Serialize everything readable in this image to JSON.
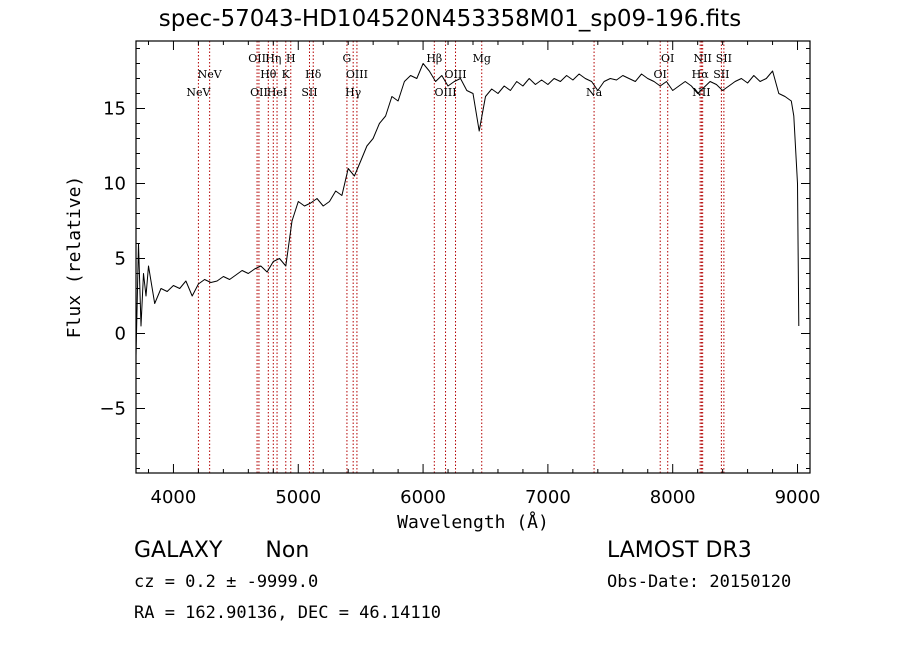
{
  "title": "spec-57043-HD104520N453358M01_sp09-196.fits",
  "info": {
    "object_class": "GALAXY",
    "subclass": "Non",
    "survey": "LAMOST DR3",
    "redshift_text": "cz = 0.2 ± -9999.0",
    "obs_date_text": "Obs-Date: 20150120",
    "coords_text": "RA = 162.90136, DEC =  46.14110"
  },
  "colors": {
    "spectrum": "#000000",
    "lines": "#b30000",
    "axes": "#000000"
  },
  "chart_data": {
    "type": "line",
    "xlabel": "Wavelength (Å)",
    "ylabel": "Flux (relative)",
    "xlim": [
      3700,
      9100
    ],
    "ylim": [
      -9.3,
      19.5
    ],
    "xticks": [
      4000,
      5000,
      6000,
      7000,
      8000,
      9000
    ],
    "yticks": [
      -5,
      0,
      5,
      10,
      15
    ],
    "series": [
      {
        "name": "flux",
        "x": [
          3700,
          3720,
          3740,
          3760,
          3780,
          3800,
          3850,
          3900,
          3950,
          4000,
          4050,
          4100,
          4150,
          4200,
          4250,
          4300,
          4350,
          4400,
          4450,
          4500,
          4550,
          4600,
          4650,
          4700,
          4750,
          4800,
          4850,
          4900,
          4950,
          5000,
          5050,
          5100,
          5150,
          5200,
          5250,
          5300,
          5350,
          5400,
          5450,
          5500,
          5550,
          5600,
          5650,
          5700,
          5750,
          5800,
          5850,
          5900,
          5950,
          6000,
          6050,
          6100,
          6150,
          6200,
          6250,
          6300,
          6350,
          6400,
          6450,
          6500,
          6550,
          6600,
          6650,
          6700,
          6750,
          6800,
          6850,
          6900,
          6950,
          7000,
          7050,
          7100,
          7150,
          7200,
          7250,
          7300,
          7350,
          7400,
          7450,
          7500,
          7550,
          7600,
          7650,
          7700,
          7750,
          7800,
          7850,
          7900,
          7950,
          8000,
          8050,
          8100,
          8150,
          8200,
          8250,
          8300,
          8350,
          8400,
          8450,
          8500,
          8550,
          8600,
          8650,
          8700,
          8750,
          8800,
          8850,
          8900,
          8950,
          8970,
          9000,
          9010
        ],
        "y": [
          -1.5,
          6.0,
          0.5,
          4.0,
          2.5,
          4.5,
          2.0,
          3.0,
          2.8,
          3.2,
          3.0,
          3.5,
          2.5,
          3.3,
          3.6,
          3.4,
          3.5,
          3.8,
          3.6,
          3.9,
          4.2,
          4.0,
          4.3,
          4.5,
          4.1,
          4.8,
          5.0,
          4.5,
          7.5,
          8.8,
          8.5,
          8.7,
          9.0,
          8.5,
          8.8,
          9.5,
          9.2,
          11.0,
          10.5,
          11.5,
          12.5,
          13.0,
          14.0,
          14.5,
          15.8,
          15.5,
          16.8,
          17.2,
          17.0,
          18.0,
          17.5,
          16.8,
          17.2,
          16.5,
          16.8,
          17.0,
          16.2,
          16.0,
          13.5,
          15.8,
          16.3,
          16.0,
          16.5,
          16.2,
          16.8,
          16.5,
          17.0,
          16.6,
          16.9,
          16.6,
          17.0,
          16.8,
          17.2,
          16.9,
          17.3,
          17.0,
          16.8,
          16.2,
          16.8,
          17.0,
          16.9,
          17.2,
          17.0,
          16.8,
          17.3,
          17.0,
          16.8,
          16.5,
          16.8,
          16.2,
          16.5,
          16.8,
          16.5,
          16.0,
          16.4,
          16.8,
          16.6,
          16.2,
          16.5,
          16.8,
          17.0,
          16.7,
          17.2,
          16.8,
          17.0,
          17.5,
          16.0,
          15.8,
          15.5,
          14.5,
          10.0,
          0.5
        ]
      }
    ],
    "lines": [
      {
        "label": "NeV",
        "wave": 4200,
        "row": 2
      },
      {
        "label": "NeV",
        "wave": 4290,
        "row": 1
      },
      {
        "label": "OII",
        "wave": 4670,
        "row": 0
      },
      {
        "label": "OII",
        "wave": 4685,
        "row": 2
      },
      {
        "label": "Hθ",
        "wave": 4760,
        "row": 1
      },
      {
        "label": "Hη",
        "wave": 4800,
        "row": 0
      },
      {
        "label": "HeI",
        "wave": 4830,
        "row": 2
      },
      {
        "label": "K",
        "wave": 4900,
        "row": 1
      },
      {
        "label": "H",
        "wave": 4940,
        "row": 0
      },
      {
        "label": "SII",
        "wave": 5090,
        "row": 2
      },
      {
        "label": "Hδ",
        "wave": 5120,
        "row": 1
      },
      {
        "label": "G",
        "wave": 5390,
        "row": 0
      },
      {
        "label": "Hγ",
        "wave": 5440,
        "row": 2
      },
      {
        "label": "OIII",
        "wave": 5470,
        "row": 1
      },
      {
        "label": "Hβ",
        "wave": 6090,
        "row": 0
      },
      {
        "label": "OIII",
        "wave": 6180,
        "row": 2
      },
      {
        "label": "OIII",
        "wave": 6260,
        "row": 1
      },
      {
        "label": "Mg",
        "wave": 6470,
        "row": 0
      },
      {
        "label": "Na",
        "wave": 7370,
        "row": 2
      },
      {
        "label": "OI",
        "wave": 7900,
        "row": 1
      },
      {
        "label": "OI",
        "wave": 7960,
        "row": 0
      },
      {
        "label": "Hα",
        "wave": 8220,
        "row": 1
      },
      {
        "label": "NII",
        "wave": 8230,
        "row": 2
      },
      {
        "label": "NII",
        "wave": 8240,
        "row": 0
      },
      {
        "label": "SII",
        "wave": 8390,
        "row": 1
      },
      {
        "label": "SII",
        "wave": 8410,
        "row": 0
      }
    ]
  }
}
